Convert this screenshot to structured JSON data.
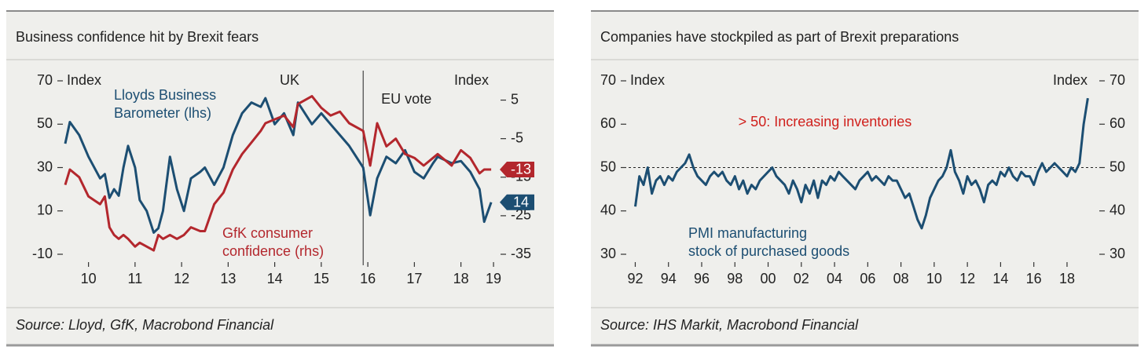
{
  "chart_data": [
    {
      "type": "line",
      "title": "Business confidence hit by Brexit fears",
      "source": "Source: Lloyd, GfK, Macrobond Financial",
      "y_label": "Index",
      "y2_label": "Index",
      "region_label": "UK",
      "event": {
        "x": 2016.4,
        "label": "EU vote"
      },
      "end_tags": true,
      "x": [
        2010.0,
        2010.1,
        2010.3,
        2010.5,
        2010.75,
        2010.85,
        2010.95,
        2011.05,
        2011.15,
        2011.25,
        2011.35,
        2011.5,
        2011.6,
        2011.75,
        2011.9,
        2012.0,
        2012.1,
        2012.25,
        2012.4,
        2012.55,
        2012.7,
        2012.9,
        2013.0,
        2013.2,
        2013.4,
        2013.6,
        2013.8,
        2014.0,
        2014.2,
        2014.3,
        2014.5,
        2014.7,
        2014.9,
        2015.0,
        2015.3,
        2015.5,
        2015.7,
        2015.9,
        2016.1,
        2016.4,
        2016.55,
        2016.7,
        2016.9,
        2017.1,
        2017.3,
        2017.5,
        2017.7,
        2017.9,
        2018.0,
        2018.3,
        2018.5,
        2018.7,
        2018.9,
        2019.0,
        2019.15
      ],
      "xlim": [
        2010,
        2019.3
      ],
      "xticks": [
        {
          "value": 2010.5,
          "label": "10"
        },
        {
          "value": 2011.5,
          "label": "11"
        },
        {
          "value": 2012.5,
          "label": "12"
        },
        {
          "value": 2013.5,
          "label": "13"
        },
        {
          "value": 2014.5,
          "label": "14"
        },
        {
          "value": 2015.5,
          "label": "15"
        },
        {
          "value": 2016.5,
          "label": "16"
        },
        {
          "value": 2017.5,
          "label": "17"
        },
        {
          "value": 2018.5,
          "label": "18"
        },
        {
          "value": 2019.2,
          "label": "19"
        }
      ],
      "ylim": [
        -10,
        70
      ],
      "yticks": [
        -10,
        10,
        30,
        50,
        70
      ],
      "y2lim": [
        -35,
        10
      ],
      "y2ticks": [
        -35,
        -25,
        -15,
        -5,
        5
      ],
      "series": [
        {
          "name": [
            "Lloyds Business",
            "Barometer (lhs)"
          ],
          "color": "#1c4e72",
          "values": [
            41,
            51,
            45,
            35,
            25,
            27,
            16,
            20,
            17,
            30,
            40,
            30,
            15,
            10,
            0,
            2,
            10,
            35,
            20,
            10,
            25,
            28,
            30,
            22,
            30,
            45,
            55,
            60,
            58,
            62,
            50,
            55,
            45,
            60,
            50,
            55,
            50,
            45,
            40,
            30,
            8,
            25,
            35,
            32,
            38,
            28,
            25,
            32,
            35,
            32,
            33,
            28,
            20,
            5,
            14
          ]
        },
        {
          "name": [
            "GfK consumer",
            "confidence (rhs)"
          ],
          "color": "#b3272d",
          "axis": "y2",
          "values": [
            -17,
            -13,
            -15,
            -20,
            -22,
            -20,
            -28,
            -30,
            -31,
            -30,
            -31,
            -33,
            -32,
            -33,
            -34,
            -30,
            -31,
            -30,
            -31,
            -30,
            -28,
            -29,
            -29,
            -22,
            -19,
            -13,
            -9,
            -6,
            -3,
            -1,
            0,
            1,
            -2,
            4,
            6,
            3,
            1,
            2,
            -1,
            -3,
            -12,
            -1,
            -7,
            -5,
            -9,
            -10,
            -12,
            -10,
            -9,
            -12,
            -8,
            -10,
            -14,
            -13,
            -13
          ]
        }
      ]
    },
    {
      "type": "line",
      "title": "Companies have stockpiled as part of Brexit preparations",
      "source": "Source: IHS Markit, Macrobond Financial",
      "y_label": "Index",
      "y2_label": "Index",
      "reference": {
        "y": 50,
        "label": "> 50: Increasing inventories",
        "color": "#d0201c"
      },
      "x": [
        1992,
        1992.25,
        1992.5,
        1992.75,
        1993,
        1993.25,
        1993.5,
        1993.75,
        1994,
        1994.25,
        1994.5,
        1994.75,
        1995,
        1995.25,
        1995.5,
        1995.75,
        1996,
        1996.25,
        1996.5,
        1996.75,
        1997,
        1997.25,
        1997.5,
        1997.75,
        1998,
        1998.25,
        1998.5,
        1998.75,
        1999,
        1999.25,
        1999.5,
        1999.75,
        2000,
        2000.25,
        2000.5,
        2000.75,
        2001,
        2001.25,
        2001.5,
        2001.75,
        2002,
        2002.25,
        2002.5,
        2002.75,
        2003,
        2003.25,
        2003.5,
        2003.75,
        2004,
        2004.25,
        2004.5,
        2004.75,
        2005,
        2005.25,
        2005.5,
        2005.75,
        2006,
        2006.25,
        2006.5,
        2006.75,
        2007,
        2007.25,
        2007.5,
        2007.75,
        2008,
        2008.25,
        2008.5,
        2008.75,
        2009,
        2009.25,
        2009.5,
        2009.75,
        2010,
        2010.25,
        2010.5,
        2010.75,
        2011,
        2011.25,
        2011.5,
        2011.75,
        2012,
        2012.25,
        2012.5,
        2012.75,
        2013,
        2013.25,
        2013.5,
        2013.75,
        2014,
        2014.25,
        2014.5,
        2014.75,
        2015,
        2015.25,
        2015.5,
        2015.75,
        2016,
        2016.25,
        2016.5,
        2016.75,
        2017,
        2017.25,
        2017.5,
        2017.75,
        2018,
        2018.25,
        2018.5,
        2018.75,
        2019,
        2019.25
      ],
      "xlim": [
        1991.6,
        2019.8
      ],
      "xticks": [
        {
          "value": 1992,
          "label": "92"
        },
        {
          "value": 1994,
          "label": "94"
        },
        {
          "value": 1996,
          "label": "96"
        },
        {
          "value": 1998,
          "label": "98"
        },
        {
          "value": 2000,
          "label": "00"
        },
        {
          "value": 2002,
          "label": "02"
        },
        {
          "value": 2004,
          "label": "04"
        },
        {
          "value": 2006,
          "label": "06"
        },
        {
          "value": 2008,
          "label": "08"
        },
        {
          "value": 2010,
          "label": "10"
        },
        {
          "value": 2012,
          "label": "12"
        },
        {
          "value": 2014,
          "label": "14"
        },
        {
          "value": 2016,
          "label": "16"
        },
        {
          "value": 2018,
          "label": "18"
        }
      ],
      "ylim": [
        30,
        70
      ],
      "yticks": [
        30,
        40,
        50,
        60,
        70
      ],
      "y2lim": [
        30,
        70
      ],
      "y2ticks": [
        30,
        40,
        50,
        60,
        70
      ],
      "series": [
        {
          "name": [
            "PMI manufacturing",
            "stock of purchased goods"
          ],
          "color": "#1c4e72",
          "values": [
            41,
            48,
            46,
            50,
            44,
            47,
            48,
            46,
            48,
            47,
            49,
            50,
            51,
            53,
            50,
            48,
            47,
            46,
            48,
            49,
            48,
            49,
            47,
            46,
            48,
            45,
            47,
            44,
            46,
            45,
            47,
            48,
            49,
            50,
            48,
            47,
            46,
            44,
            47,
            45,
            42,
            46,
            44,
            47,
            43,
            47,
            46,
            48,
            47,
            49,
            48,
            47,
            46,
            45,
            47,
            48,
            49,
            47,
            48,
            47,
            46,
            48,
            47,
            47,
            45,
            43,
            44,
            41,
            38,
            36,
            39,
            43,
            45,
            47,
            48,
            50,
            54,
            49,
            47,
            44,
            48,
            46,
            47,
            45,
            42,
            46,
            47,
            46,
            49,
            48,
            50,
            48,
            47,
            49,
            48,
            48,
            46,
            49,
            51,
            49,
            50,
            51,
            50,
            49,
            48,
            50,
            49,
            51,
            60,
            66
          ]
        }
      ]
    }
  ]
}
